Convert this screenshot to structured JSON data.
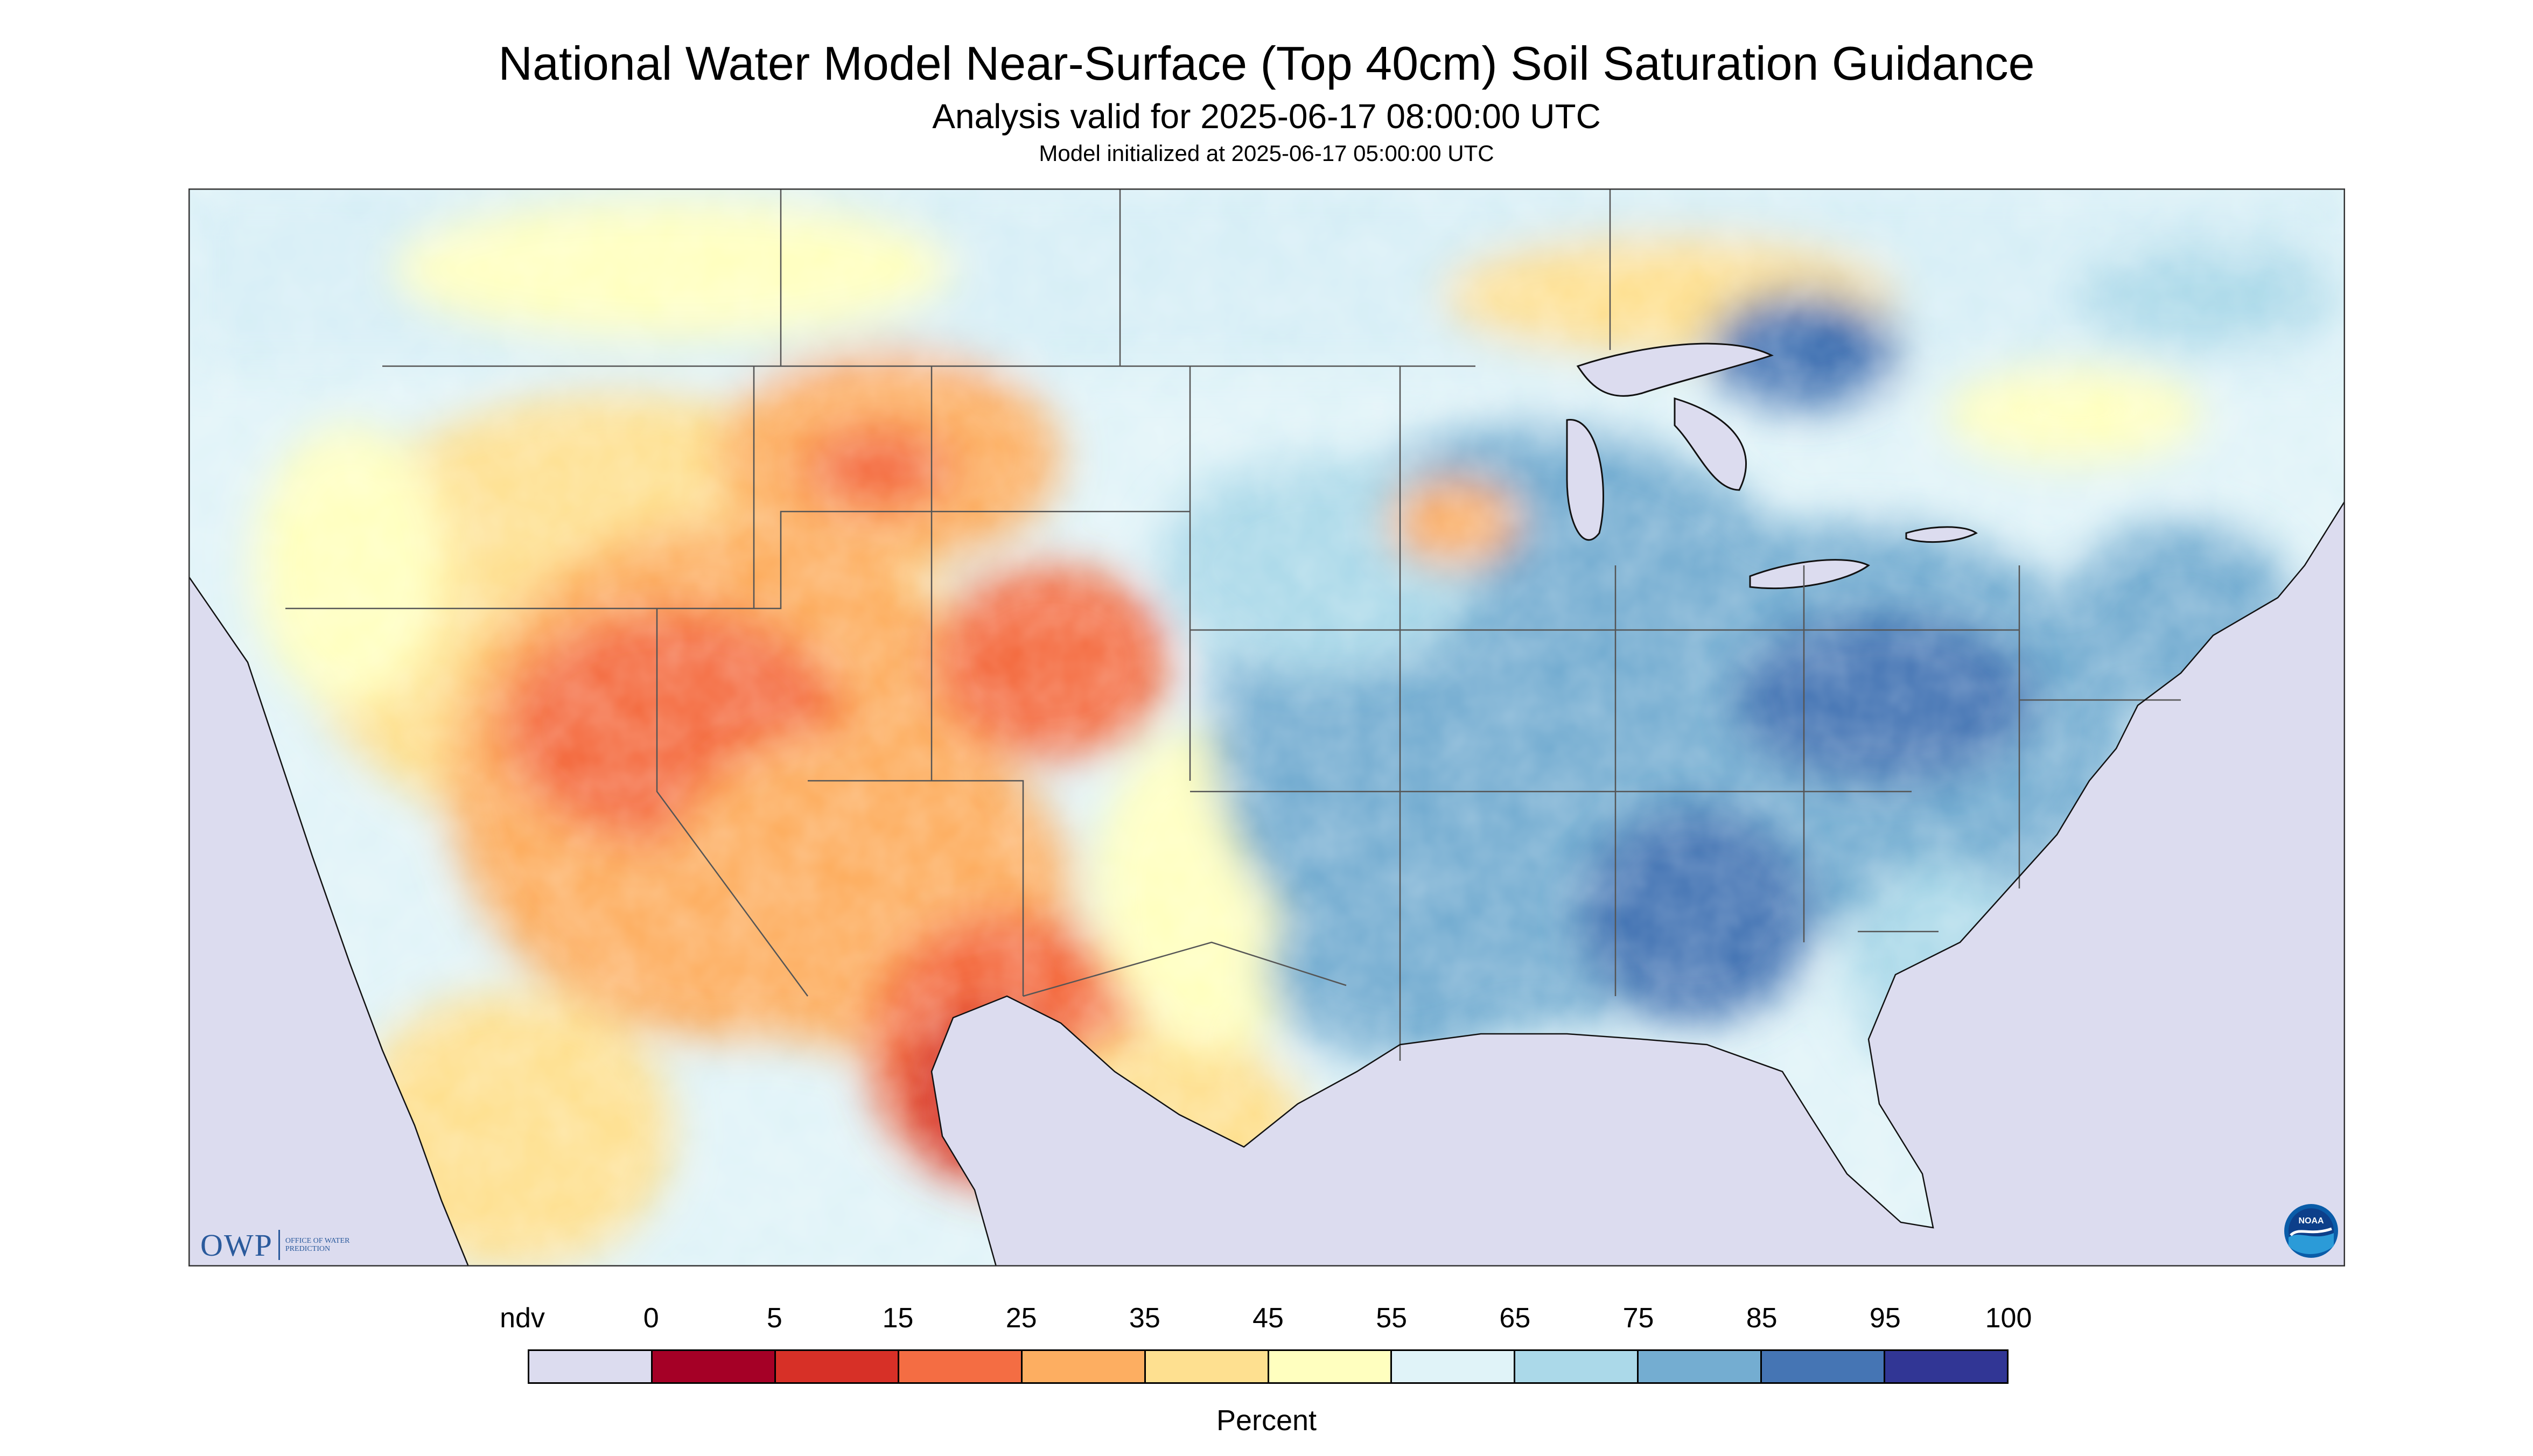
{
  "title": "National Water Model Near-Surface (Top 40cm) Soil Saturation Guidance",
  "subtitle": "Analysis valid for 2025-06-17 08:00:00 UTC",
  "init_line": "Model initialized at 2025-06-17 05:00:00 UTC",
  "colors": {
    "ndv": "#dcdcef",
    "frame": "#333333",
    "state_line": "#555555",
    "water_outline": "#111111"
  },
  "legend": {
    "unit": "Percent",
    "ticks": [
      "ndv",
      "0",
      "5",
      "15",
      "25",
      "35",
      "45",
      "55",
      "65",
      "75",
      "85",
      "95",
      "100"
    ],
    "bins": [
      {
        "label": "ndv",
        "color": "#dcdcef"
      },
      {
        "label": "0-5",
        "color": "#a50026"
      },
      {
        "label": "5-15",
        "color": "#d73027"
      },
      {
        "label": "15-25",
        "color": "#f46d43"
      },
      {
        "label": "25-35",
        "color": "#fdae61"
      },
      {
        "label": "35-45",
        "color": "#fee090"
      },
      {
        "label": "45-55",
        "color": "#ffffbf"
      },
      {
        "label": "55-65",
        "color": "#e0f3f8"
      },
      {
        "label": "65-75",
        "color": "#abd9e9"
      },
      {
        "label": "75-85",
        "color": "#74add1"
      },
      {
        "label": "85-95",
        "color": "#4575b4"
      },
      {
        "label": "95-100",
        "color": "#313695"
      }
    ]
  },
  "logos": {
    "owp": {
      "letters": "OWP",
      "subtitle": "OFFICE OF WATER PREDICTION"
    },
    "noaa": {
      "letters": "NOAA"
    }
  }
}
